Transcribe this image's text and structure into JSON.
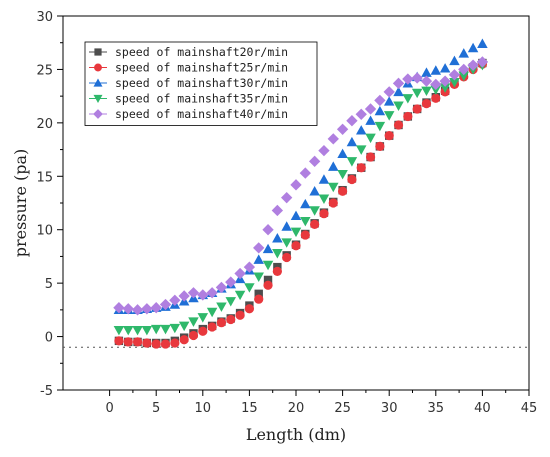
{
  "chart_data": {
    "type": "scatter",
    "xlabel": "Length (dm)",
    "ylabel": "pressure (pa)",
    "xlim": [
      -5,
      45
    ],
    "ylim": [
      -5,
      30
    ],
    "xticks": [
      0,
      5,
      10,
      15,
      20,
      25,
      30,
      35,
      40,
      45
    ],
    "yticks": [
      -5,
      0,
      5,
      10,
      15,
      20,
      25,
      30
    ],
    "reference_line_y": -1,
    "legend_position": "top-left",
    "x": [
      1,
      2,
      3,
      4,
      5,
      6,
      7,
      8,
      9,
      10,
      11,
      12,
      13,
      14,
      15,
      16,
      17,
      18,
      19,
      20,
      21,
      22,
      23,
      24,
      25,
      26,
      27,
      28,
      29,
      30,
      31,
      32,
      33,
      34,
      35,
      36,
      37,
      38,
      39,
      40
    ],
    "series": [
      {
        "name": "speed of mainshaft20r/min",
        "color": "#4d4d4d",
        "marker": "square",
        "values": [
          -0.4,
          -0.5,
          -0.5,
          -0.6,
          -0.6,
          -0.6,
          -0.4,
          -0.1,
          0.3,
          0.7,
          1.0,
          1.4,
          1.7,
          2.2,
          2.9,
          4.0,
          5.3,
          6.5,
          7.6,
          8.6,
          9.6,
          10.6,
          11.6,
          12.6,
          13.7,
          14.8,
          15.8,
          16.8,
          17.8,
          18.8,
          19.8,
          20.6,
          21.3,
          21.9,
          22.4,
          23.0,
          23.8,
          24.5,
          25.2,
          25.6
        ]
      },
      {
        "name": "speed of mainshaft25r/min",
        "color": "#e8383d",
        "marker": "circle",
        "values": [
          -0.4,
          -0.5,
          -0.5,
          -0.6,
          -0.7,
          -0.7,
          -0.6,
          -0.3,
          0.1,
          0.5,
          0.9,
          1.3,
          1.6,
          2.0,
          2.6,
          3.5,
          4.8,
          6.1,
          7.4,
          8.5,
          9.5,
          10.5,
          11.5,
          12.5,
          13.6,
          14.7,
          15.8,
          16.8,
          17.8,
          18.8,
          19.8,
          20.6,
          21.3,
          21.8,
          22.3,
          22.9,
          23.6,
          24.3,
          25.0,
          25.5
        ]
      },
      {
        "name": "speed of mainshaft30r/min",
        "color": "#1f6fd6",
        "marker": "triangle-up",
        "values": [
          2.5,
          2.5,
          2.5,
          2.6,
          2.7,
          2.8,
          3.0,
          3.3,
          3.6,
          3.9,
          4.1,
          4.5,
          4.9,
          5.4,
          6.2,
          7.2,
          8.2,
          9.2,
          10.3,
          11.3,
          12.4,
          13.6,
          14.7,
          15.9,
          17.1,
          18.2,
          19.3,
          20.2,
          21.1,
          22.0,
          22.9,
          23.7,
          24.3,
          24.7,
          24.9,
          25.1,
          25.8,
          26.5,
          27.0,
          27.4
        ]
      },
      {
        "name": "speed of mainshaft35r/min",
        "color": "#2fb86b",
        "marker": "triangle-down",
        "values": [
          0.6,
          0.6,
          0.6,
          0.6,
          0.7,
          0.7,
          0.8,
          1.0,
          1.4,
          1.8,
          2.3,
          2.8,
          3.3,
          3.9,
          4.6,
          5.6,
          6.7,
          7.8,
          8.8,
          9.8,
          10.8,
          11.8,
          12.9,
          14.0,
          15.2,
          16.4,
          17.5,
          18.6,
          19.7,
          20.7,
          21.6,
          22.3,
          22.8,
          23.0,
          23.1,
          23.3,
          23.8,
          24.4,
          25.0,
          25.4
        ]
      },
      {
        "name": "speed of mainshaft40r/min",
        "color": "#b07fe0",
        "marker": "diamond",
        "values": [
          2.7,
          2.6,
          2.5,
          2.6,
          2.7,
          3.0,
          3.4,
          3.8,
          4.1,
          3.9,
          4.1,
          4.6,
          5.1,
          5.9,
          6.5,
          8.3,
          10.0,
          11.8,
          13.0,
          14.2,
          15.3,
          16.4,
          17.4,
          18.5,
          19.4,
          20.2,
          20.8,
          21.3,
          22.1,
          22.9,
          23.7,
          24.1,
          24.2,
          23.9,
          23.6,
          23.9,
          24.5,
          25.0,
          25.4,
          25.7
        ]
      }
    ]
  }
}
